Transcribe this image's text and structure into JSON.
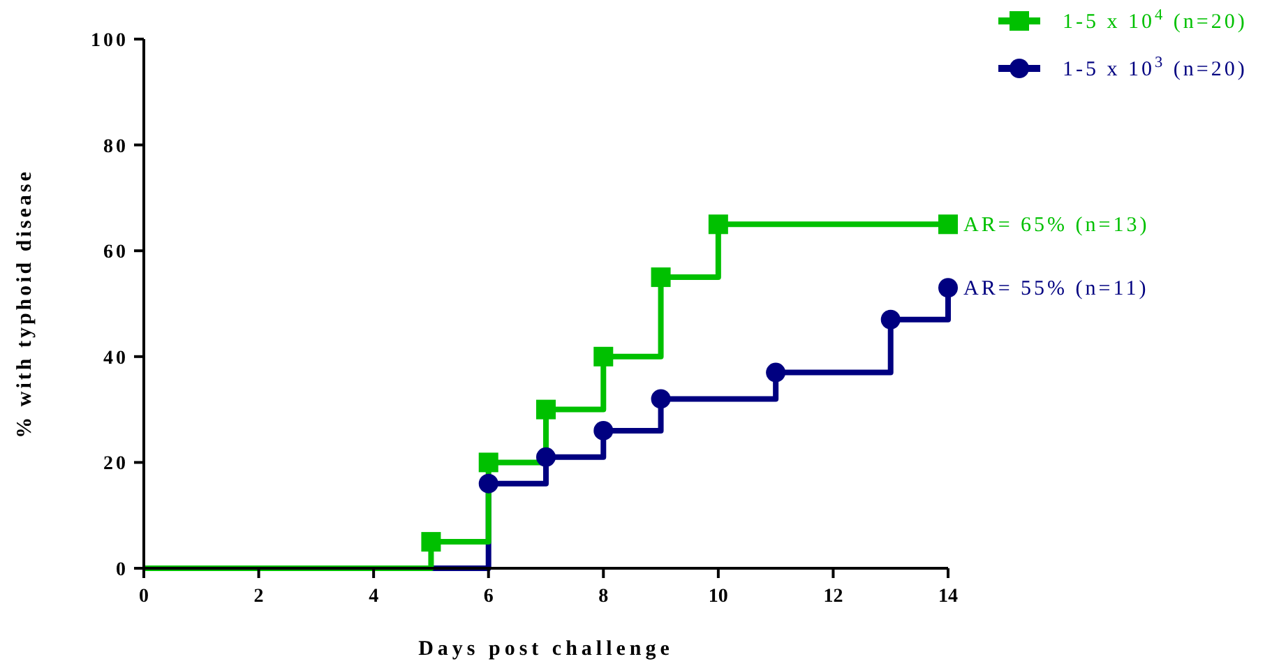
{
  "chart_data": {
    "type": "step",
    "xlabel": "Days post challenge",
    "ylabel": "% with typhoid disease",
    "xlim": [
      0,
      14
    ],
    "xticks": [
      0,
      2,
      4,
      6,
      8,
      10,
      12,
      14
    ],
    "ylim": [
      0,
      100
    ],
    "yticks": [
      0,
      20,
      40,
      60,
      80,
      100
    ],
    "grid": false,
    "legend": "top right",
    "series": [
      {
        "name": "1-5 x 10$^{4}$ (n=20)",
        "color": "#00c000",
        "marker": "square",
        "x": [
          0,
          5,
          6,
          7,
          8,
          9,
          10,
          14
        ],
        "values": [
          0,
          5,
          20,
          30,
          40,
          55,
          65,
          65
        ]
      },
      {
        "name": "1-5 x 10$^{3}$ (n=20)",
        "color": "#000080",
        "marker": "circle",
        "x": [
          0,
          6,
          7,
          8,
          9,
          11,
          13,
          14
        ],
        "values": [
          0,
          16,
          21,
          26,
          32,
          37,
          47,
          53
        ]
      }
    ],
    "annotations": [
      {
        "text": "AR= 65%  (n=13)",
        "x": 14,
        "y": 65
      },
      {
        "text": "AR= 55%  (n=11)",
        "x": 14,
        "y": 53
      }
    ]
  }
}
